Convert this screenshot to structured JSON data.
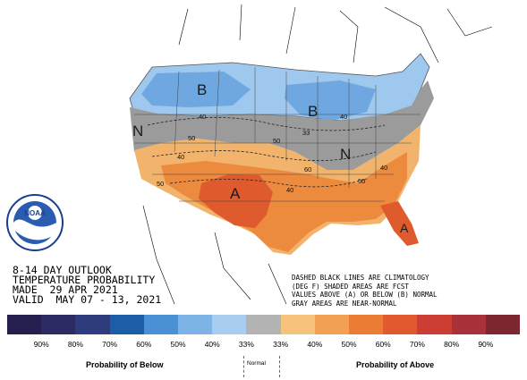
{
  "title_lines": [
    "8-14 DAY OUTLOOK",
    "TEMPERATURE PROBABILITY",
    "MADE  29 APR 2021",
    "VALID  MAY 07 - 13, 2021"
  ],
  "notes_lines": [
    "DASHED BLACK LINES ARE CLIMATOLOGY",
    "(DEG F) SHADED AREAS ARE FCST",
    "VALUES ABOVE (A) OR BELOW (B) NORMAL",
    "GRAY AREAS ARE NEAR-NORMAL"
  ],
  "logo_text": "NOAA",
  "map_labels": {
    "b_west": "B",
    "b_greatlakes": "B",
    "n_west": "N",
    "n_east": "N",
    "a_southwest": "A",
    "a_florida": "A"
  },
  "contour_labels": [
    "40",
    "40",
    "50",
    "33",
    "40",
    "40",
    "50",
    "60",
    "40",
    "50",
    "50",
    "40",
    "33",
    "40",
    "50",
    "40",
    "60",
    "40",
    "50",
    "60",
    "50"
  ],
  "legend": {
    "labels": [
      "90%",
      "80%",
      "70%",
      "60%",
      "50%",
      "40%",
      "33%",
      "33%",
      "40%",
      "50%",
      "60%",
      "70%",
      "80%",
      "90%"
    ],
    "colors": [
      "#241f4e",
      "#2b2a62",
      "#2e3b7c",
      "#1b5ea7",
      "#4a90d4",
      "#7db3e6",
      "#a9cdf0",
      "#b3b3b3",
      "#f5c37c",
      "#f2a054",
      "#eb7c34",
      "#e15a2f",
      "#cc3d33",
      "#a8313a",
      "#7b2630"
    ],
    "below_caption": "Probability of Below",
    "normal_caption": "Normal",
    "above_caption": "Probability of Above"
  },
  "colors": {
    "below_light": "#9ec8ee",
    "below_mid": "#6fa8e0",
    "near_normal": "#9b9b9b",
    "above_light": "#f2b46c",
    "above_mid": "#ec8a3e",
    "above_strong": "#df5a2c"
  }
}
